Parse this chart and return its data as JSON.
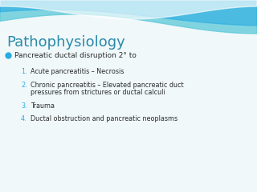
{
  "title": "Pathophysiology",
  "title_color": "#2a8aa8",
  "title_fontsize": 13,
  "bullet_color": "#29abe2",
  "bullet_text": "Pancreatic ductal disruption 2° to",
  "bullet_fontsize": 6.5,
  "items": [
    "Acute pancreatitis – Necrosis",
    "Chronic pancreatitis – Elevated pancreatic duct\npressures from strictures or ductal calculi",
    "Trauma",
    "Ductal obstruction and pancreatic neoplasms"
  ],
  "item_color": "#2b2b2b",
  "number_color": "#29abe2",
  "item_fontsize": 5.8,
  "bg_color": "#f0f8fa",
  "wave_color1": "#5bc8d8",
  "wave_color2": "#29abe2",
  "wave_color3": "#a8dde8"
}
